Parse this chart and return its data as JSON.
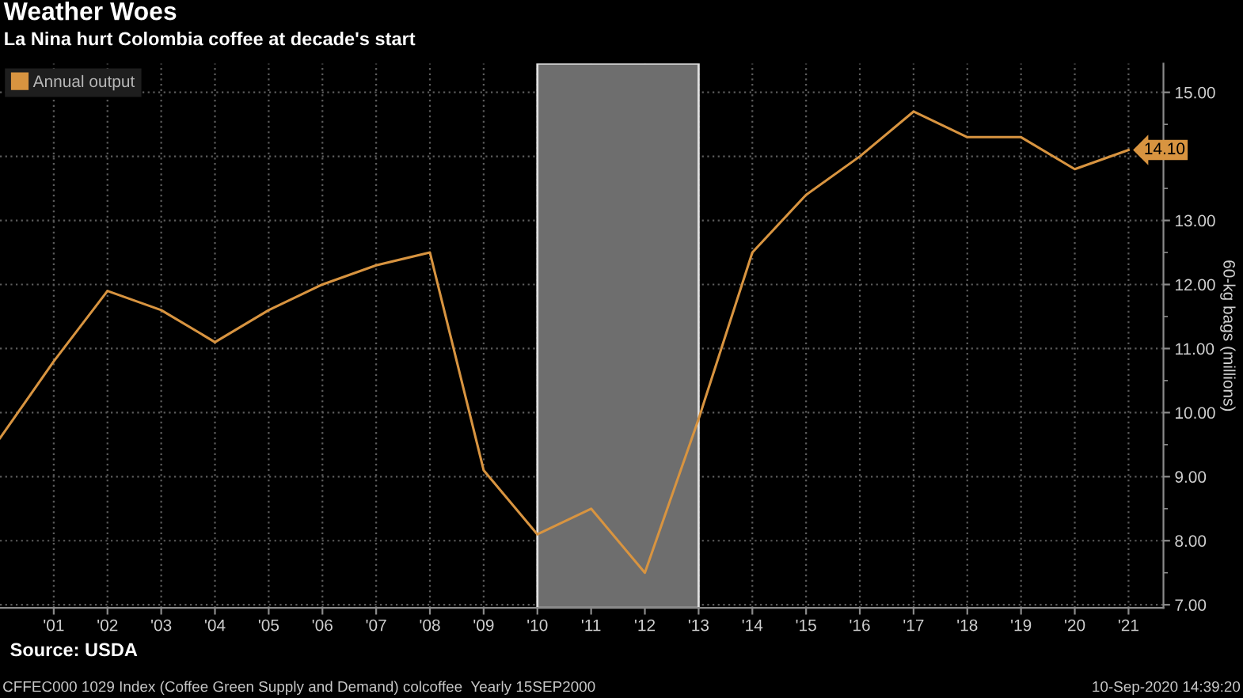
{
  "chart_data": {
    "type": "line",
    "title": "Weather Woes",
    "subtitle": "La Nina hurt Colombia coffee at decade's start",
    "ylabel": "60-kg bags (millions)",
    "annotations": [
      "Source: USDA",
      "CFFEC000 1029 Index (Coffee Green Supply and Demand) colcoffee  Yearly 15SEP2000",
      "10-Sep-2020 14:39:20"
    ],
    "x": [
      2000,
      2001,
      2002,
      2003,
      2004,
      2005,
      2006,
      2007,
      2008,
      2009,
      2010,
      2011,
      2012,
      2013,
      2014,
      2015,
      2016,
      2017,
      2018,
      2019,
      2020,
      2021
    ],
    "series": [
      {
        "name": "Annual output",
        "color": "#d89440",
        "values": [
          9.6,
          10.8,
          11.9,
          11.6,
          11.1,
          11.6,
          12.0,
          12.3,
          12.5,
          9.1,
          8.1,
          8.5,
          7.5,
          9.9,
          12.5,
          13.4,
          14.0,
          14.7,
          14.3,
          14.3,
          13.8,
          14.1
        ],
        "value_labels": [
          null,
          null,
          null,
          null,
          null,
          null,
          null,
          null,
          null,
          null,
          null,
          null,
          null,
          null,
          null,
          null,
          null,
          null,
          null,
          null,
          null,
          "14.10"
        ]
      }
    ],
    "xlim": [
      2000,
      2021.65
    ],
    "xticks": [
      {
        "value": 2001,
        "label": "'01"
      },
      {
        "value": 2002,
        "label": "'02"
      },
      {
        "value": 2003,
        "label": "'03"
      },
      {
        "value": 2004,
        "label": "'04"
      },
      {
        "value": 2005,
        "label": "'05"
      },
      {
        "value": 2006,
        "label": "'06"
      },
      {
        "value": 2007,
        "label": "'07"
      },
      {
        "value": 2008,
        "label": "'08"
      },
      {
        "value": 2009,
        "label": "'09"
      },
      {
        "value": 2010,
        "label": "'10"
      },
      {
        "value": 2011,
        "label": "'11"
      },
      {
        "value": 2012,
        "label": "'12"
      },
      {
        "value": 2013,
        "label": "'13"
      },
      {
        "value": 2014,
        "label": "'14"
      },
      {
        "value": 2015,
        "label": "'15"
      },
      {
        "value": 2016,
        "label": "'16"
      },
      {
        "value": 2017,
        "label": "'17"
      },
      {
        "value": 2018,
        "label": "'18"
      },
      {
        "value": 2019,
        "label": "'19"
      },
      {
        "value": 2020,
        "label": "'20"
      },
      {
        "value": 2021,
        "label": "'21"
      }
    ],
    "ylim": [
      6.95,
      15.45
    ],
    "yticks": [
      {
        "value": 7,
        "label": "7.00"
      },
      {
        "value": 8,
        "label": "8.00"
      },
      {
        "value": 9,
        "label": "9.00"
      },
      {
        "value": 10,
        "label": "10.00"
      },
      {
        "value": 11,
        "label": "11.00"
      },
      {
        "value": 12,
        "label": "12.00"
      },
      {
        "value": 13,
        "label": "13.00"
      },
      {
        "value": 14,
        "label": null
      },
      {
        "value": 15,
        "label": "15.00"
      }
    ],
    "bands": [
      {
        "axis": "x",
        "from": 2010,
        "to": 2013,
        "color": "#6e6e6e"
      }
    ],
    "grid": true,
    "legend": "top left"
  }
}
